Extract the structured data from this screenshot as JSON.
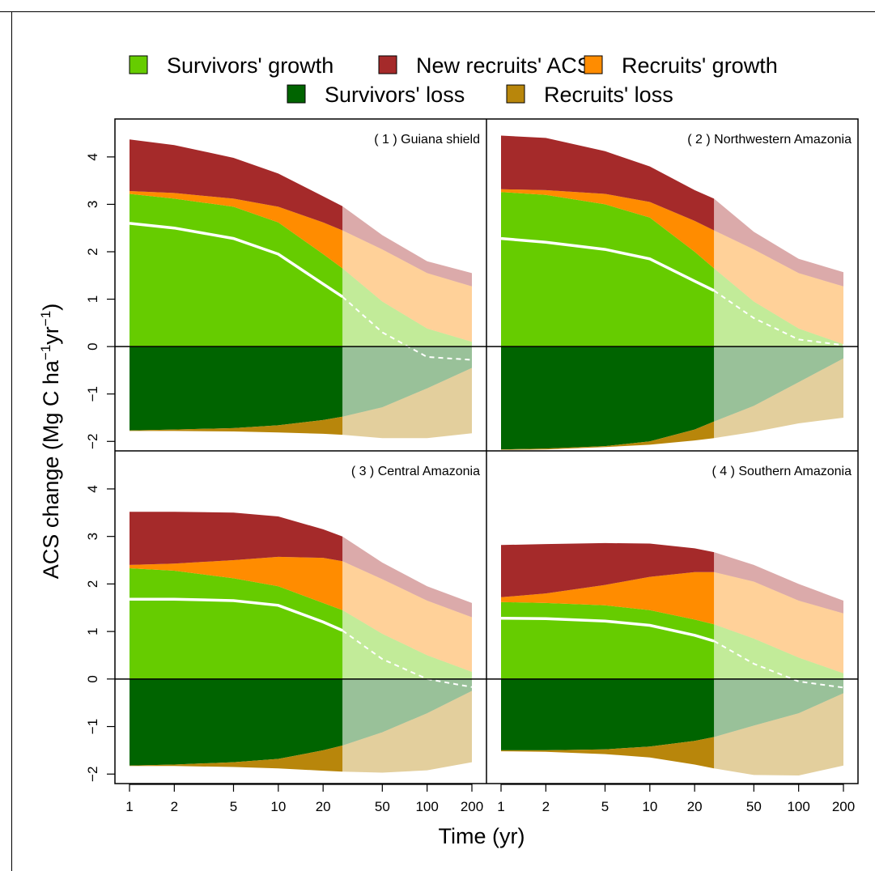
{
  "chart_data": {
    "type": "area",
    "xlabel": "Time (yr)",
    "ylabel": "ACS change (Mg C ha",
    "ylabel_sup1": "−1",
    "ylabel_mid": "yr",
    "ylabel_sup2": "−1",
    "ylabel_close": ")",
    "xscale": "log",
    "xlim": [
      1,
      200
    ],
    "ylim": [
      -2.2,
      4.8
    ],
    "xticks": [
      1,
      2,
      5,
      10,
      20,
      50,
      100,
      200
    ],
    "xtick_labels": [
      "1",
      "2",
      "5",
      "10",
      "20",
      "50",
      "100",
      "200"
    ],
    "yticks": [
      -2,
      -1,
      0,
      1,
      2,
      3,
      4
    ],
    "ytick_labels": [
      "−2",
      "−1",
      "0",
      "1",
      "2",
      "3",
      "4"
    ],
    "observed_limit_x": 27,
    "legend": {
      "placement": "top",
      "rows": [
        [
          {
            "key": "survivors_growth",
            "label": "Survivors' growth"
          },
          {
            "key": "new_recruits_acs",
            "label": "New recruits' ACS"
          },
          {
            "key": "recruits_growth",
            "label": "Recruits' growth"
          }
        ],
        [
          {
            "key": "survivors_loss",
            "label": "Survivors' loss"
          },
          {
            "key": "recruits_loss",
            "label": "Recruits' loss"
          }
        ]
      ]
    },
    "colors": {
      "survivors_growth": "#66cc00",
      "new_recruits_acs": "#a52a2a",
      "recruits_growth": "#ff8c00",
      "survivors_loss": "#006400",
      "recruits_loss": "#b8860b",
      "net_line": "#ffffff"
    },
    "x": [
      1,
      2,
      5,
      10,
      20,
      27,
      50,
      100,
      200
    ],
    "panels": [
      {
        "title": "( 1 ) Guiana shield",
        "survivors_growth_top": [
          3.22,
          3.12,
          2.95,
          2.62,
          1.95,
          1.65,
          0.95,
          0.38,
          0.1
        ],
        "recruits_growth_top": [
          3.28,
          3.24,
          3.12,
          2.95,
          2.62,
          2.45,
          2.05,
          1.55,
          1.27
        ],
        "recruits_acs_top": [
          4.37,
          4.25,
          3.98,
          3.65,
          3.17,
          2.96,
          2.35,
          1.8,
          1.55
        ],
        "survivors_loss_bottom": [
          -1.77,
          -1.75,
          -1.72,
          -1.66,
          -1.55,
          -1.48,
          -1.28,
          -0.88,
          -0.45
        ],
        "recruits_loss_bottom": [
          -1.78,
          -1.78,
          -1.79,
          -1.81,
          -1.84,
          -1.86,
          -1.93,
          -1.93,
          -1.83
        ],
        "net": [
          2.6,
          2.5,
          2.28,
          1.95,
          1.32,
          1.05,
          0.3,
          -0.22,
          -0.28
        ]
      },
      {
        "title": "( 2 ) Northwestern Amazonia",
        "survivors_growth_top": [
          3.26,
          3.2,
          3.0,
          2.72,
          2.0,
          1.65,
          0.95,
          0.38,
          0.05
        ],
        "recruits_growth_top": [
          3.32,
          3.3,
          3.22,
          3.05,
          2.65,
          2.45,
          2.05,
          1.55,
          1.27
        ],
        "recruits_acs_top": [
          4.45,
          4.4,
          4.12,
          3.8,
          3.3,
          3.12,
          2.42,
          1.85,
          1.57
        ],
        "survivors_loss_bottom": [
          -2.17,
          -2.15,
          -2.1,
          -2.0,
          -1.75,
          -1.58,
          -1.25,
          -0.75,
          -0.25
        ],
        "recruits_loss_bottom": [
          -2.18,
          -2.17,
          -2.12,
          -2.07,
          -1.98,
          -1.93,
          -1.8,
          -1.62,
          -1.5
        ],
        "net": [
          2.28,
          2.2,
          2.05,
          1.85,
          1.38,
          1.18,
          0.6,
          0.15,
          0.03
        ]
      },
      {
        "title": "( 3 ) Central Amazonia",
        "survivors_growth_top": [
          2.33,
          2.28,
          2.12,
          1.95,
          1.6,
          1.45,
          0.95,
          0.5,
          0.15
        ],
        "recruits_growth_top": [
          2.4,
          2.43,
          2.5,
          2.57,
          2.55,
          2.48,
          2.1,
          1.65,
          1.3
        ],
        "recruits_acs_top": [
          3.52,
          3.52,
          3.5,
          3.42,
          3.15,
          3.0,
          2.45,
          1.95,
          1.6
        ],
        "survivors_loss_bottom": [
          -1.82,
          -1.8,
          -1.75,
          -1.68,
          -1.5,
          -1.4,
          -1.12,
          -0.72,
          -0.25
        ],
        "recruits_loss_bottom": [
          -1.83,
          -1.83,
          -1.85,
          -1.88,
          -1.93,
          -1.95,
          -1.97,
          -1.92,
          -1.75
        ],
        "net": [
          1.68,
          1.68,
          1.65,
          1.55,
          1.2,
          1.02,
          0.42,
          0.0,
          -0.17
        ]
      },
      {
        "title": "( 4 ) Southern Amazonia",
        "survivors_growth_top": [
          1.62,
          1.6,
          1.55,
          1.45,
          1.25,
          1.15,
          0.85,
          0.45,
          0.12
        ],
        "recruits_growth_top": [
          1.72,
          1.8,
          1.98,
          2.15,
          2.25,
          2.25,
          2.05,
          1.65,
          1.38
        ],
        "recruits_acs_top": [
          2.82,
          2.84,
          2.86,
          2.85,
          2.75,
          2.67,
          2.4,
          2.0,
          1.65
        ],
        "survivors_loss_bottom": [
          -1.5,
          -1.5,
          -1.48,
          -1.42,
          -1.3,
          -1.22,
          -0.98,
          -0.72,
          -0.3
        ],
        "recruits_loss_bottom": [
          -1.52,
          -1.53,
          -1.58,
          -1.65,
          -1.8,
          -1.88,
          -2.02,
          -2.03,
          -1.82
        ],
        "net": [
          1.28,
          1.27,
          1.22,
          1.13,
          0.92,
          0.8,
          0.32,
          -0.05,
          -0.18
        ]
      }
    ]
  }
}
